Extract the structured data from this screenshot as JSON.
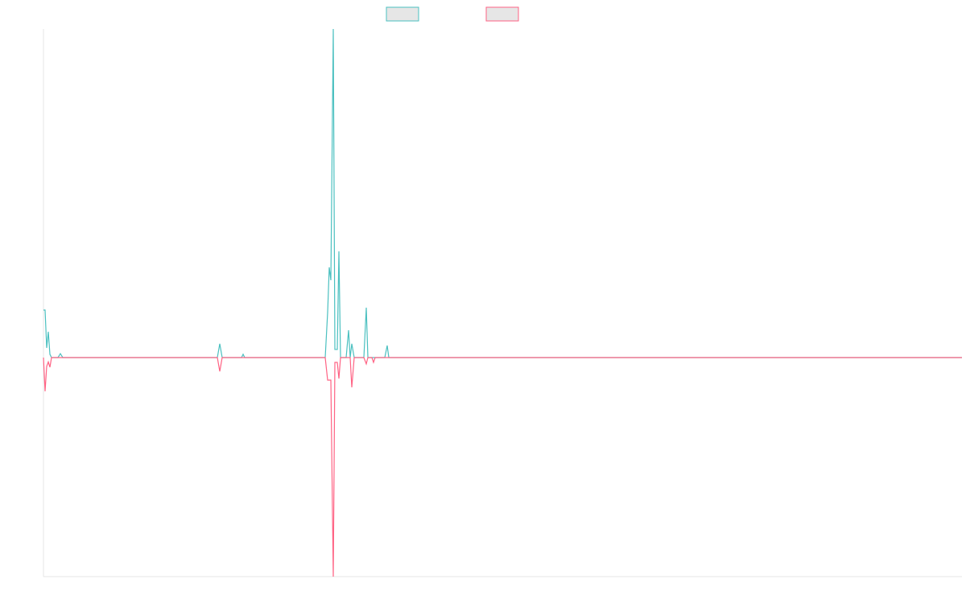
{
  "chart_data": {
    "type": "line",
    "x": [
      0,
      2,
      4,
      6,
      8,
      10,
      18,
      21,
      24,
      216,
      219,
      222,
      246,
      248,
      250,
      350,
      353,
      355,
      357,
      360,
      362,
      365,
      367,
      369,
      376,
      379,
      381,
      383,
      386,
      398,
      401,
      403,
      408,
      410,
      412,
      424,
      427,
      429,
      1141
    ],
    "xlim": [
      0,
      1141
    ],
    "ylim": [
      -100,
      150
    ],
    "grid": false,
    "series": [
      {
        "color": "#4bc0c0",
        "values": [
          21.7,
          21.7,
          4.4,
          11.8,
          1.5,
          0,
          0,
          1.8,
          0,
          0,
          6.3,
          0,
          0,
          1.5,
          0,
          0,
          20.6,
          41.2,
          35.3,
          150,
          3.7,
          3.7,
          48.5,
          0,
          0,
          12.5,
          0,
          6.3,
          0,
          0,
          22.8,
          0,
          0,
          0,
          0,
          0,
          5.5,
          0,
          0
        ]
      },
      {
        "color": "#ff6384",
        "values": [
          0,
          -15.4,
          -4,
          -2,
          -4.4,
          0,
          0,
          0,
          0,
          0,
          -6.3,
          0,
          0,
          0,
          0,
          0,
          -10.3,
          -10.3,
          -10.3,
          -100,
          -2.2,
          -2.2,
          -9.6,
          0,
          0,
          0,
          0,
          -13.6,
          0,
          0,
          -2.9,
          0,
          0,
          -2.2,
          0,
          0,
          0,
          0,
          0
        ]
      }
    ]
  }
}
